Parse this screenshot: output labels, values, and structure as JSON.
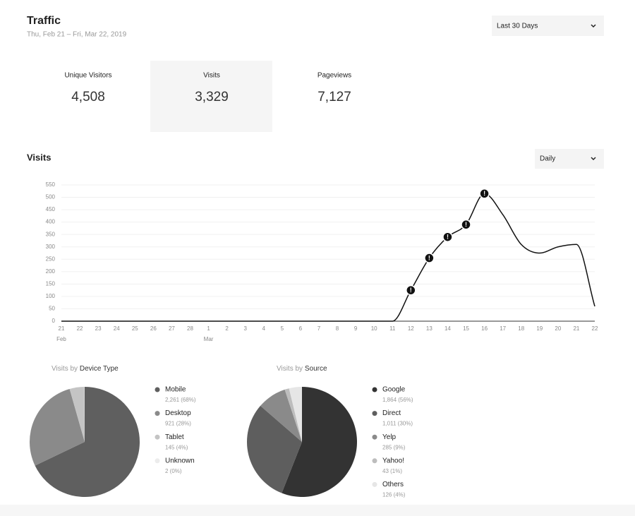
{
  "header": {
    "title": "Traffic",
    "subtitle": "Thu, Feb 21 – Fri, Mar 22, 2019",
    "range_select": "Last 30 Days"
  },
  "stats": [
    {
      "label": "Unique Visitors",
      "value": "4,508"
    },
    {
      "label": "Visits",
      "value": "3,329",
      "selected": true
    },
    {
      "label": "Pageviews",
      "value": "7,127"
    }
  ],
  "section": {
    "title": "Visits",
    "interval_select": "Daily"
  },
  "chart_data": [
    {
      "type": "line",
      "color": "#111111",
      "categories": [
        "21",
        "22",
        "23",
        "24",
        "25",
        "26",
        "27",
        "28",
        "1",
        "2",
        "3",
        "4",
        "5",
        "6",
        "7",
        "8",
        "9",
        "10",
        "11",
        "12",
        "13",
        "14",
        "15",
        "16",
        "17",
        "18",
        "19",
        "20",
        "21",
        "22"
      ],
      "months": [
        "Feb",
        null,
        null,
        null,
        null,
        null,
        null,
        null,
        "Mar",
        null,
        null,
        null,
        null,
        null,
        null,
        null,
        null,
        null,
        null,
        null,
        null,
        null,
        null,
        null,
        null,
        null,
        null,
        null,
        null,
        null
      ],
      "values": [
        0,
        0,
        0,
        0,
        0,
        0,
        0,
        0,
        0,
        0,
        0,
        0,
        0,
        0,
        0,
        0,
        0,
        0,
        0,
        125,
        255,
        340,
        390,
        515,
        430,
        310,
        275,
        300,
        310,
        60
      ],
      "markers": [
        null,
        null,
        null,
        null,
        null,
        null,
        null,
        null,
        null,
        null,
        null,
        null,
        null,
        null,
        null,
        null,
        null,
        null,
        null,
        "!",
        "!",
        "!",
        "!",
        "!",
        null,
        null,
        null,
        null,
        null,
        null
      ],
      "ylim": [
        0,
        550
      ],
      "yticks": [
        0,
        50,
        100,
        150,
        200,
        250,
        300,
        350,
        400,
        450,
        500,
        550
      ],
      "grid": true
    },
    {
      "type": "pie",
      "title_prefix": "Visits by",
      "title": "Device Type",
      "categories": [
        "Mobile",
        "Desktop",
        "Tablet",
        "Unknown"
      ],
      "values": [
        2261,
        921,
        145,
        2
      ],
      "value_labels": [
        "2,261 (68%)",
        "921 (28%)",
        "145 (4%)",
        "2 (0%)"
      ],
      "colors": [
        "#5f5f5f",
        "#8a8a8a",
        "#c4c4c4",
        "#ececec"
      ]
    },
    {
      "type": "pie",
      "title_prefix": "Visits by",
      "title": "Source",
      "categories": [
        "Google",
        "Direct",
        "Yelp",
        "Yahoo!",
        "Others"
      ],
      "values": [
        1864,
        1011,
        285,
        43,
        126
      ],
      "value_labels": [
        "1,864 (56%)",
        "1,011 (30%)",
        "285 (9%)",
        "43 (1%)",
        "126 (4%)"
      ],
      "colors": [
        "#333333",
        "#5e5e5e",
        "#8a8a8a",
        "#bdbdbd",
        "#e6e6e6"
      ]
    }
  ]
}
